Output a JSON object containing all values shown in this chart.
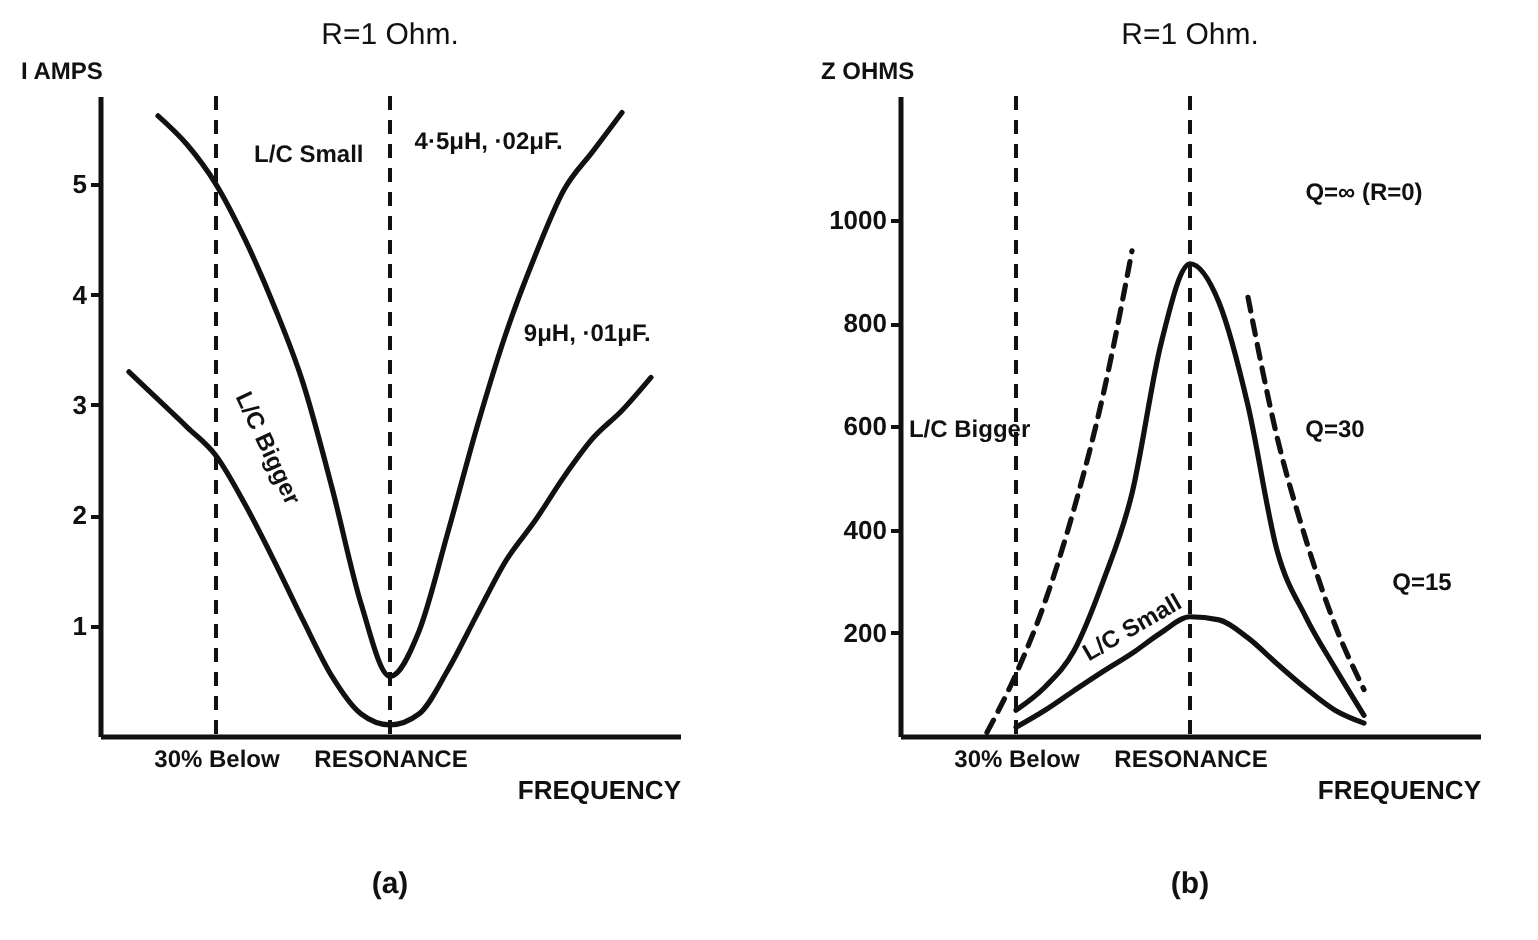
{
  "chart_data": [
    {
      "type": "line",
      "title": "R=1 Ohm.",
      "ylabel": "I AMPS",
      "xlabel": "FREQUENCY",
      "categories": [
        null,
        null,
        null,
        null,
        "30% Below",
        null,
        null,
        null,
        null,
        null,
        "RESONANCE",
        null,
        null,
        null,
        null,
        null,
        null,
        null,
        null,
        null,
        null
      ],
      "ylim": [
        0,
        5.8
      ],
      "yticks": [
        1,
        2,
        3,
        4,
        5
      ],
      "series": [
        {
          "color": "#111111",
          "line_style": "solid",
          "values": [
            null,
            null,
            5.62,
            5.36,
            5.0,
            4.5,
            3.9,
            3.2,
            2.25,
            1.2,
            0.54,
            0.95,
            1.85,
            2.8,
            3.65,
            4.35,
            4.95,
            5.3,
            5.65,
            null,
            null
          ]
        },
        {
          "color": "#111111",
          "line_style": "solid",
          "values": [
            null,
            3.3,
            3.05,
            2.8,
            2.54,
            2.1,
            1.59,
            1.05,
            0.54,
            0.2,
            0.1,
            0.2,
            0.6,
            1.1,
            1.59,
            1.95,
            2.35,
            2.7,
            2.95,
            3.25,
            null
          ]
        }
      ],
      "ref_lines": [
        {
          "axis": "x",
          "value": "30% Below",
          "line_style": "dashed"
        },
        {
          "axis": "x",
          "value": "RESONANCE",
          "line_style": "dashed"
        }
      ],
      "annotations": [
        "4·5μH, ·02μF.",
        "9μH, ·01μF.",
        "L/C Small",
        "L/C Bigger",
        "(a)"
      ]
    },
    {
      "type": "line",
      "title": "R=1 Ohm.",
      "ylabel": "Z OHMS",
      "xlabel": "FREQUENCY",
      "categories": [
        null,
        null,
        null,
        null,
        "30% Below",
        null,
        null,
        null,
        null,
        null,
        "RESONANCE",
        null,
        null,
        null,
        null,
        null,
        null,
        null,
        null,
        null,
        null
      ],
      "ylim": [
        0,
        1240
      ],
      "yticks": [
        200,
        400,
        600,
        800,
        1000
      ],
      "series": [
        {
          "color": "#111111",
          "line_style": "dashed",
          "values": [
            null,
            null,
            null,
            7,
            120,
            260,
            440,
            660,
            940,
            null,
            null,
            null,
            850,
            580,
            380,
            215,
            90,
            null,
            null,
            null,
            null
          ]
        },
        {
          "color": "#111111",
          "line_style": "solid",
          "values": [
            null,
            null,
            null,
            null,
            50,
            95,
            165,
            299,
            470,
            760,
            915,
            840,
            640,
            360,
            230,
            132,
            40,
            null,
            null,
            null,
            null
          ]
        },
        {
          "color": "#111111",
          "line_style": "solid",
          "values": [
            null,
            null,
            null,
            null,
            17,
            50,
            88,
            125,
            160,
            200,
            231,
            225,
            190,
            140,
            92,
            50,
            25,
            null,
            null,
            null,
            null
          ]
        }
      ],
      "ref_lines": [
        {
          "axis": "x",
          "value": "30% Below",
          "line_style": "dashed"
        },
        {
          "axis": "x",
          "value": "RESONANCE",
          "line_style": "dashed"
        }
      ],
      "annotations": [
        "Q=∞ (R=0)",
        "Q=30",
        "Q=15",
        "L/C Bigger",
        "L/C Small",
        "(b)"
      ]
    }
  ]
}
